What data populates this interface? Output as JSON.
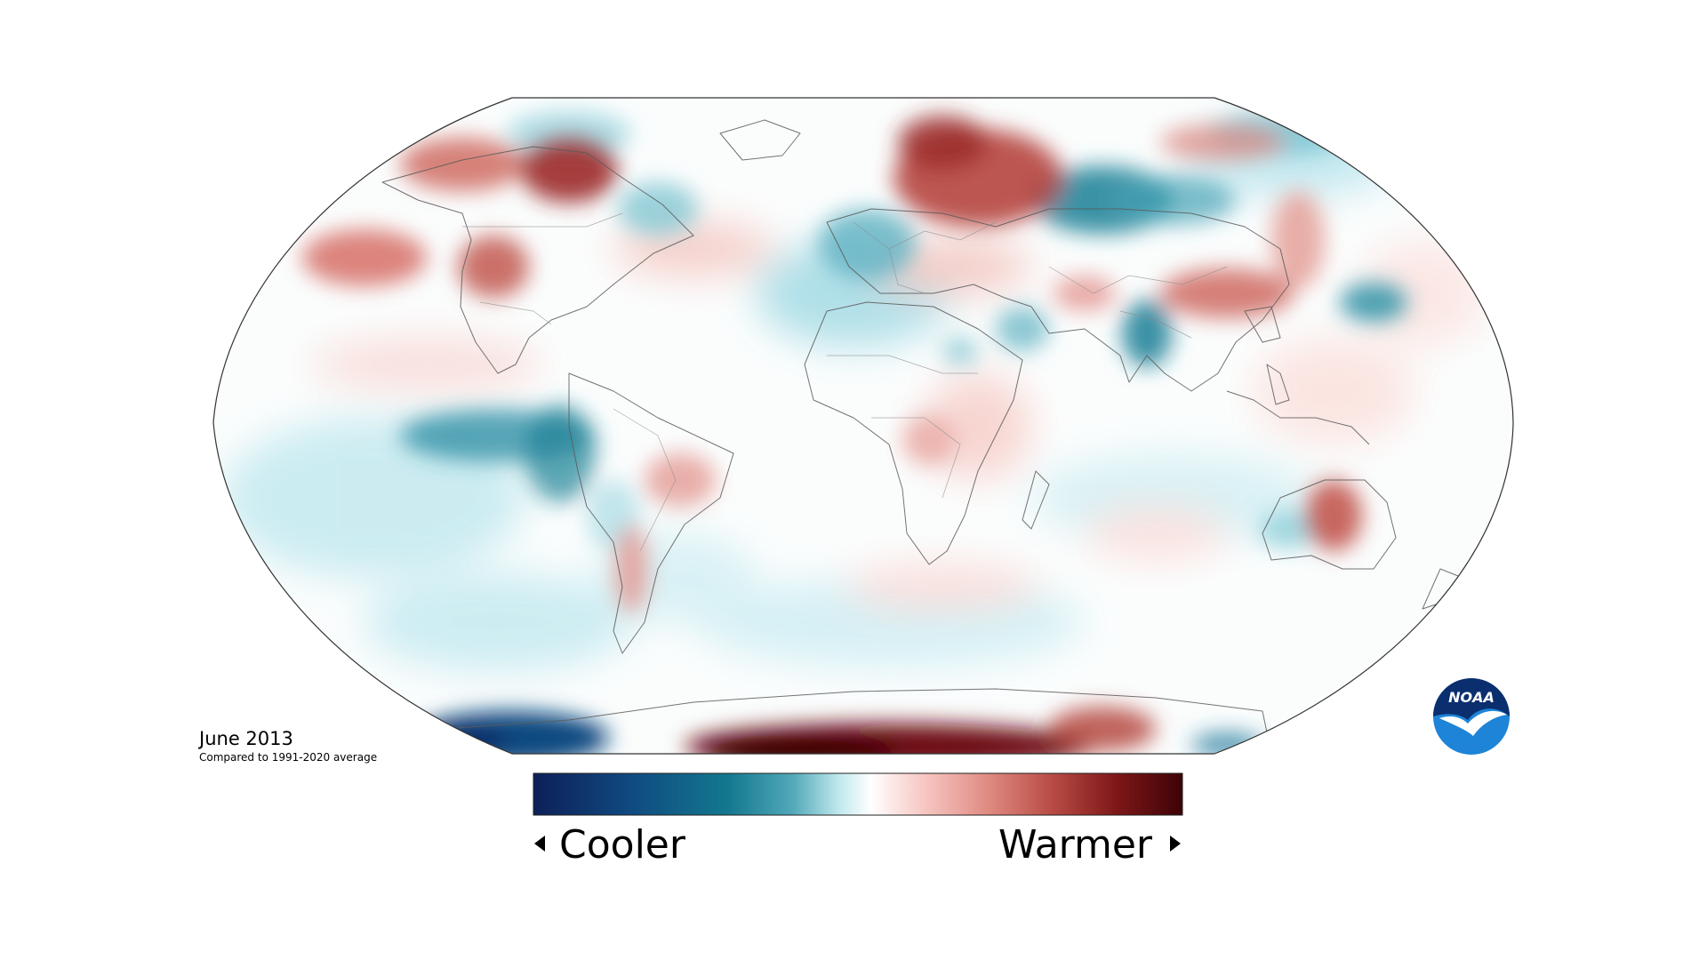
{
  "map": {
    "period": "June 2013",
    "baseline": "Compared to 1991-2020 average",
    "projection": "robinson",
    "theme": "surface temperature anomaly"
  },
  "legend": {
    "cooler_label": "Cooler",
    "warmer_label": "Warmer",
    "colors": [
      "#0d1f58",
      "#0f4a80",
      "#13788f",
      "#52a9b8",
      "#bfe8ee",
      "#ffffff",
      "#f7c8c4",
      "#e08b82",
      "#b84b44",
      "#7d1618",
      "#3d0306"
    ]
  },
  "logo": {
    "text": "NOAA",
    "colors": [
      "#0b2e6f",
      "#1d84d7",
      "#ffffff"
    ]
  }
}
